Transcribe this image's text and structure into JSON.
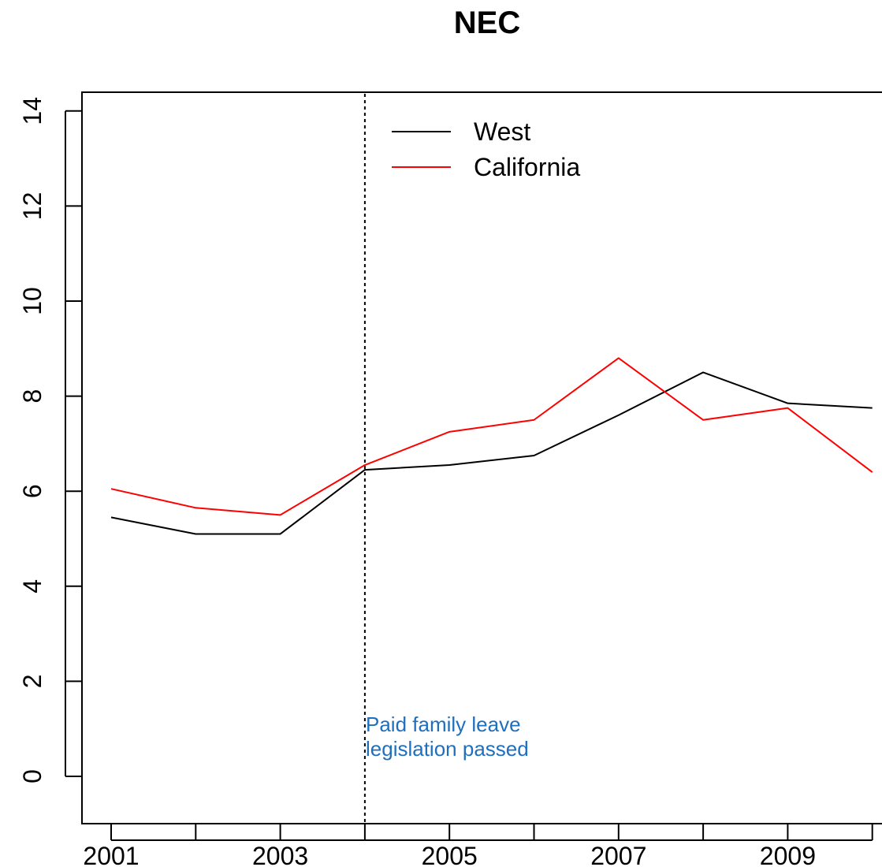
{
  "chart_data": {
    "type": "line",
    "title": "NEC",
    "xlabel": "",
    "ylabel": "",
    "x": [
      2001,
      2002,
      2003,
      2004,
      2005,
      2006,
      2007,
      2008,
      2009,
      2010
    ],
    "xlim": [
      2001,
      2010
    ],
    "ylim": [
      0,
      14
    ],
    "x_ticks": [
      2001,
      2002,
      2003,
      2004,
      2005,
      2006,
      2007,
      2008,
      2009,
      2010
    ],
    "x_tick_labels": [
      "2001",
      "",
      "2003",
      "",
      "2005",
      "",
      "2007",
      "",
      "2009",
      ""
    ],
    "y_ticks": [
      0,
      2,
      4,
      6,
      8,
      10,
      12,
      14
    ],
    "y_tick_labels": [
      "0",
      "2",
      "4",
      "6",
      "8",
      "10",
      "12",
      "14"
    ],
    "grid": false,
    "legend_position": "top",
    "series": [
      {
        "name": "West",
        "color": "#000000",
        "values": [
          5.45,
          5.1,
          5.1,
          6.45,
          6.55,
          6.75,
          7.6,
          8.5,
          7.85,
          7.75
        ]
      },
      {
        "name": "California",
        "color": "#ff0000",
        "values": [
          6.05,
          5.65,
          5.5,
          6.55,
          7.25,
          7.5,
          8.8,
          7.5,
          7.75,
          6.4
        ]
      }
    ],
    "vline": {
      "x": 2004,
      "style": "dotted",
      "color": "#000000"
    },
    "annotation": {
      "lines": [
        "Paid family leave",
        "legislation passed"
      ],
      "color": "#1f6fbf"
    }
  }
}
